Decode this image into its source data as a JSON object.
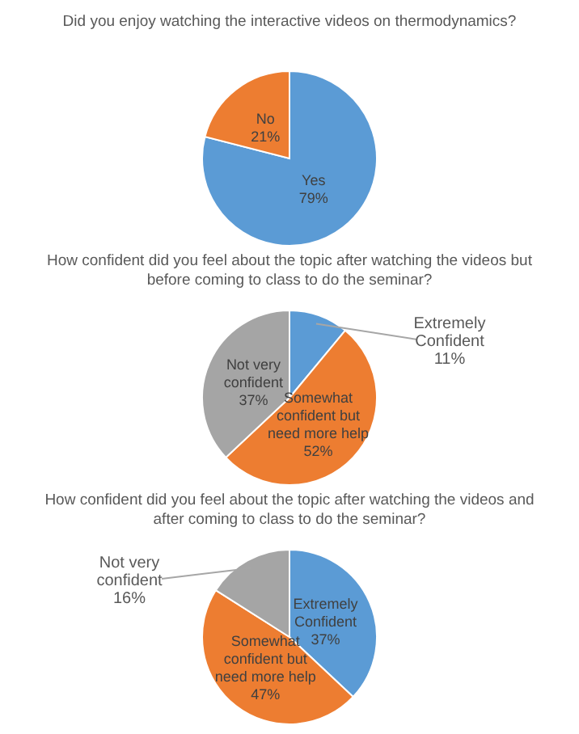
{
  "chart_data": [
    {
      "type": "pie",
      "title": "Did you enjoy watching the interactive videos on thermodynamics?",
      "categories": [
        "Yes",
        "No"
      ],
      "values": [
        79,
        21
      ],
      "value_labels": [
        "79%",
        "21%"
      ],
      "colors": [
        "#5b9bd5",
        "#ed7d31"
      ]
    },
    {
      "type": "pie",
      "title": "How confident did you feel about the topic after watching the videos but before coming to class to do the seminar?",
      "categories": [
        "Extremely Confident",
        "Somewhat confident but need more help",
        "Not very confident"
      ],
      "values": [
        11,
        52,
        37
      ],
      "value_labels": [
        "11%",
        "52%",
        "37%"
      ],
      "colors": [
        "#5b9bd5",
        "#ed7d31",
        "#a5a5a5"
      ]
    },
    {
      "type": "pie",
      "title": "How confident did you feel about the topic after watching the videos and after coming to class to do the seminar?",
      "categories": [
        "Extremely Confident",
        "Somewhat confident but need more help",
        "Not very confident"
      ],
      "values": [
        37,
        47,
        16
      ],
      "value_labels": [
        "37%",
        "47%",
        "16%"
      ],
      "colors": [
        "#5b9bd5",
        "#ed7d31",
        "#a5a5a5"
      ]
    }
  ]
}
